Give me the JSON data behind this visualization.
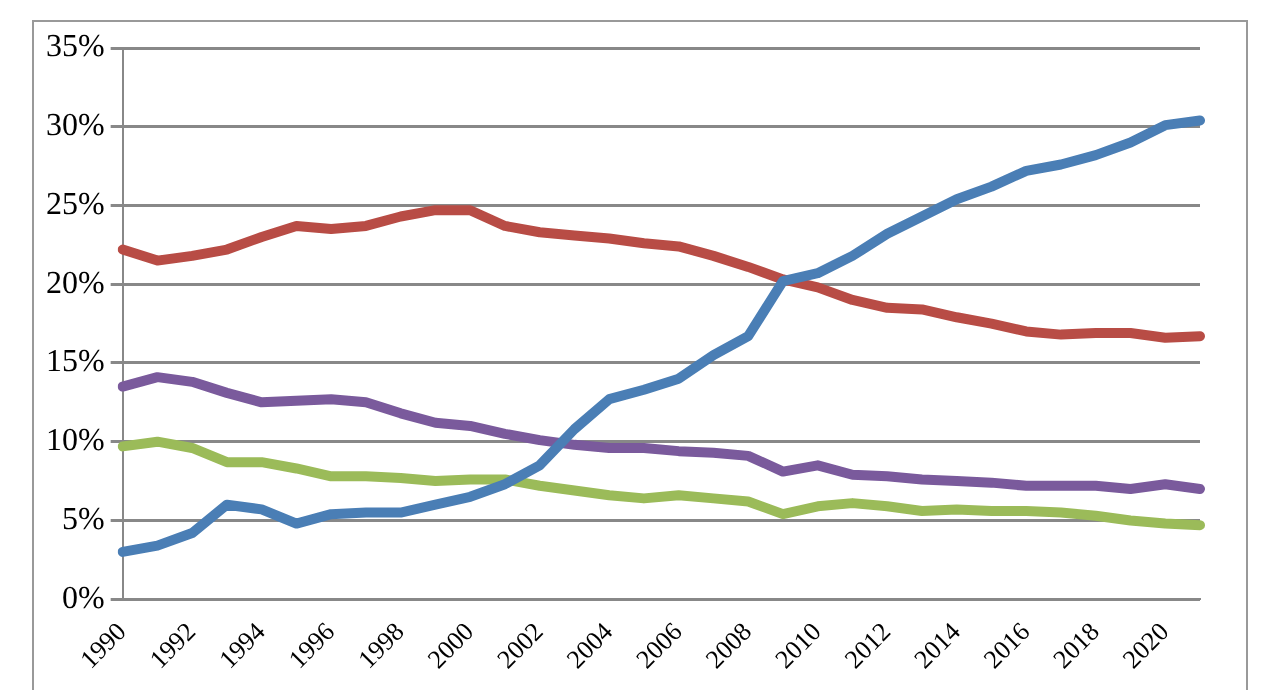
{
  "chart_data": {
    "type": "line",
    "categories": [
      "1990",
      null,
      "1992",
      null,
      "1994",
      null,
      "1996",
      null,
      "1998",
      null,
      "2000",
      null,
      "2002",
      null,
      "2004",
      null,
      "2006",
      null,
      "2008",
      null,
      "2010",
      null,
      "2012",
      null,
      "2014",
      null,
      "2016",
      null,
      "2018",
      null,
      "2020",
      null
    ],
    "series": [
      {
        "color": "#4a7eb5",
        "values": [
          3.0,
          3.4,
          4.2,
          6.0,
          5.7,
          4.8,
          5.4,
          5.5,
          5.5,
          6.0,
          6.5,
          7.3,
          8.5,
          10.8,
          12.7,
          13.3,
          14.0,
          15.5,
          16.7,
          20.2,
          20.7,
          21.8,
          23.2,
          24.3,
          25.4,
          26.2,
          27.2,
          27.6,
          28.2,
          29.0,
          30.1,
          30.4
        ]
      },
      {
        "color": "#b84c45",
        "values": [
          22.2,
          21.5,
          21.8,
          22.2,
          23.0,
          23.7,
          23.5,
          23.7,
          24.3,
          24.7,
          24.7,
          23.7,
          23.3,
          23.1,
          22.9,
          22.6,
          22.4,
          21.8,
          21.1,
          20.3,
          19.8,
          19.0,
          18.5,
          18.4,
          17.9,
          17.5,
          17.0,
          16.8,
          16.9,
          16.9,
          16.6,
          16.7
        ]
      },
      {
        "color": "#7a5a9c",
        "values": [
          13.5,
          14.1,
          13.8,
          13.1,
          12.5,
          12.6,
          12.7,
          12.5,
          11.8,
          11.2,
          11.0,
          10.5,
          10.1,
          9.8,
          9.6,
          9.6,
          9.4,
          9.3,
          9.1,
          8.1,
          8.5,
          7.9,
          7.8,
          7.6,
          7.5,
          7.4,
          7.2,
          7.2,
          7.2,
          7.0,
          7.3,
          7.0
        ]
      },
      {
        "color": "#9bbb59",
        "values": [
          9.7,
          10.0,
          9.6,
          8.7,
          8.7,
          8.3,
          7.8,
          7.8,
          7.7,
          7.5,
          7.6,
          7.6,
          7.2,
          6.9,
          6.6,
          6.4,
          6.6,
          6.4,
          6.2,
          5.4,
          5.9,
          6.1,
          5.9,
          5.6,
          5.7,
          5.6,
          5.6,
          5.5,
          5.3,
          5.0,
          4.8,
          4.7
        ]
      }
    ],
    "ylim": [
      0,
      35
    ],
    "yticks": [
      {
        "value": 0,
        "label": "0%"
      },
      {
        "value": 5,
        "label": "5%"
      },
      {
        "value": 10,
        "label": "10%"
      },
      {
        "value": 15,
        "label": "15%"
      },
      {
        "value": 20,
        "label": "20%"
      },
      {
        "value": 25,
        "label": "25%"
      },
      {
        "value": 30,
        "label": "30%"
      },
      {
        "value": 35,
        "label": "35%"
      }
    ],
    "grid": "y",
    "legend": false,
    "marker": "none",
    "line_style": "solid"
  }
}
